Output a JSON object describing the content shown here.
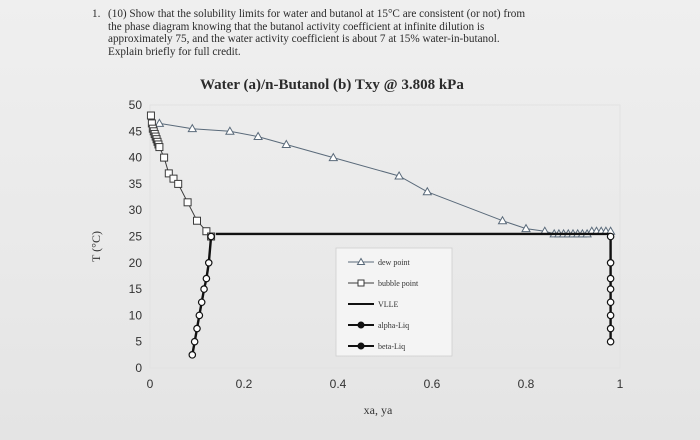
{
  "question": {
    "number": "1.",
    "lines": [
      "(10) Show that the solubility limits for water and butanol at 15°C are consistent (or not) from",
      "the phase diagram knowing that the butanol activity coefficient at infinite dilution is",
      "approximately 75, and the water activity coefficient is about 7 at 15% water-in-butanol.",
      "Explain briefly for full credit."
    ]
  },
  "chart_data": {
    "type": "line",
    "title": "Water (a)/n-Butanol (b) Txy @ 3.808 kPa",
    "xlabel": "xa, ya",
    "ylabel": "T (°C)",
    "xlim": [
      0,
      1
    ],
    "ylim": [
      0,
      50
    ],
    "xticks": [
      "0",
      "0.2",
      "0.4",
      "0.6",
      "0.8",
      "1"
    ],
    "yticks": [
      "0",
      "5",
      "10",
      "15",
      "20",
      "25",
      "30",
      "35",
      "40",
      "45",
      "50"
    ],
    "legend_position": "center-right",
    "series": [
      {
        "name": "dew point",
        "marker": "triangle",
        "x": [
          0.02,
          0.09,
          0.17,
          0.23,
          0.29,
          0.39,
          0.53,
          0.59,
          0.75,
          0.8,
          0.84,
          0.86,
          0.87,
          0.88,
          0.89,
          0.9,
          0.91,
          0.92,
          0.93,
          0.94,
          0.95,
          0.96,
          0.97,
          0.98
        ],
        "y": [
          46.5,
          45.5,
          45,
          44,
          42.5,
          40,
          36.5,
          33.5,
          28,
          26.5,
          26,
          25.5,
          25.5,
          25.5,
          25.5,
          25.5,
          25.5,
          25.5,
          25.5,
          26,
          26,
          26,
          26,
          26
        ]
      },
      {
        "name": "bubble point",
        "marker": "square",
        "x": [
          0.002,
          0.004,
          0.006,
          0.008,
          0.01,
          0.012,
          0.014,
          0.016,
          0.018,
          0.02,
          0.03,
          0.04,
          0.05,
          0.06,
          0.08,
          0.1,
          0.12,
          0.13
        ],
        "y": [
          48,
          46.5,
          45.5,
          45,
          44.5,
          44,
          43.5,
          43,
          42.5,
          42,
          40,
          37,
          36,
          35,
          31.5,
          28,
          26,
          25
        ]
      },
      {
        "name": "VLLE",
        "marker": "none",
        "x": [
          0.14,
          0.98
        ],
        "y": [
          25.5,
          25.5
        ]
      },
      {
        "name": "alpha-Liq",
        "marker": "circle",
        "x": [
          0.13,
          0.125,
          0.12,
          0.115,
          0.11,
          0.105,
          0.1,
          0.095,
          0.09
        ],
        "y": [
          25,
          20,
          17,
          15,
          12.5,
          10,
          7.5,
          5,
          2.5
        ]
      },
      {
        "name": "beta-Liq",
        "marker": "circle",
        "x": [
          0.98,
          0.98,
          0.98,
          0.98,
          0.98,
          0.98,
          0.98,
          0.98
        ],
        "y": [
          25,
          20,
          17,
          15,
          12.5,
          10,
          7.5,
          5
        ]
      }
    ]
  }
}
